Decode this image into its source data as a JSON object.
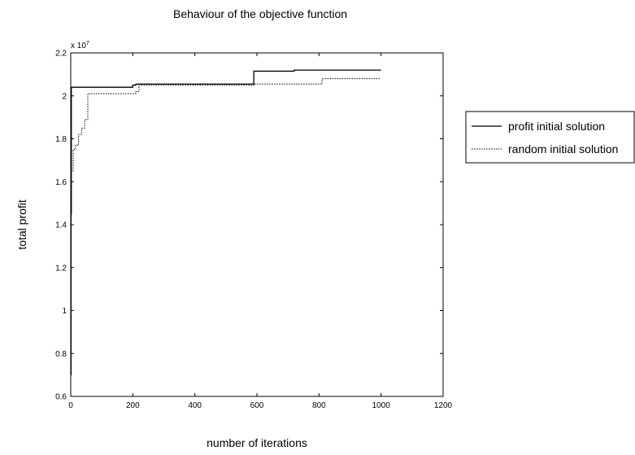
{
  "chart_data": {
    "type": "line",
    "title": "Behaviour of the objective function",
    "xlabel": "number of iterations",
    "ylabel": "total profit",
    "y_multiplier_label": "x 10",
    "y_multiplier_exponent": "7",
    "xlim": [
      0,
      1200
    ],
    "ylim": [
      0.6,
      2.2
    ],
    "xticks": [
      "0",
      "200",
      "400",
      "600",
      "800",
      "1000",
      "1200"
    ],
    "yticks": [
      "0.6",
      "0.8",
      "1",
      "1.2",
      "1.4",
      "1.6",
      "1.8",
      "2",
      "2.2"
    ],
    "grid": false,
    "legend_position": "outside-right",
    "series": [
      {
        "name": "profit initial solution",
        "style": "solid",
        "color": "#000000",
        "step": true,
        "x": [
          0,
          1,
          2,
          200,
          210,
          590,
          720,
          1000
        ],
        "y": [
          0.7,
          1.45,
          2.04,
          2.05,
          2.055,
          2.115,
          2.12,
          2.12
        ]
      },
      {
        "name": "random initial solution",
        "style": "dotted",
        "color": "#000000",
        "step": true,
        "x": [
          0,
          8,
          15,
          25,
          35,
          45,
          55,
          210,
          220,
          590,
          810,
          1000
        ],
        "y": [
          1.65,
          1.75,
          1.77,
          1.82,
          1.85,
          1.89,
          2.01,
          2.02,
          2.05,
          2.055,
          2.08,
          2.08
        ]
      }
    ]
  }
}
